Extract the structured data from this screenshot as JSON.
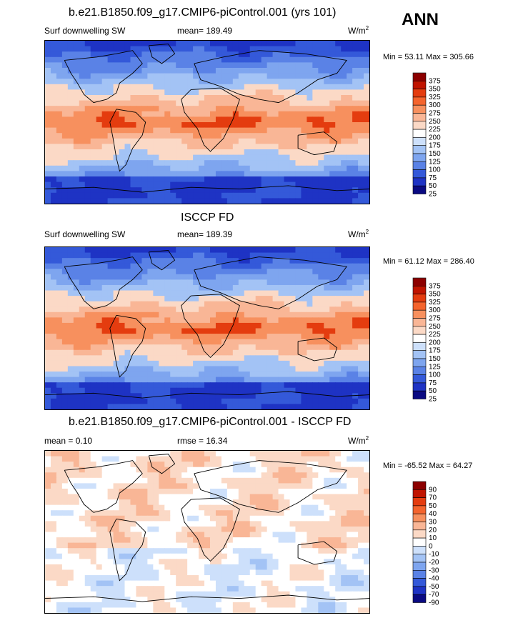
{
  "season": "ANN",
  "chart_data": [
    {
      "type": "heatmap",
      "title": "b.e21.B1850.f09_g17.CMIP6-piControl.001 (yrs 101)",
      "variable": "Surf downwelling SW",
      "stat": "mean= 189.49",
      "units": "W/m",
      "units_sup": "2",
      "min": "53.11",
      "max": "305.66",
      "minmax_label": "Min =  53.11 Max = 305.66",
      "levels": [
        "375",
        "350",
        "325",
        "300",
        "275",
        "250",
        "225",
        "200",
        "175",
        "150",
        "125",
        "100",
        "75",
        "50",
        "25"
      ],
      "colors": [
        "#8c0000",
        "#c01400",
        "#e43c0f",
        "#f4642d",
        "#f7905e",
        "#f9b696",
        "#fbd9c6",
        "#ffffff",
        "#cde0fb",
        "#a3c3f5",
        "#7ea5ef",
        "#5a82e6",
        "#3459d9",
        "#1e33c4",
        "#0a0a82"
      ],
      "map_palette": [
        "#1e33c4",
        "#3459d9",
        "#5a82e6",
        "#7ea5ef",
        "#a3c3f5",
        "#fbd9c6",
        "#f9b696",
        "#f7905e",
        "#e43c0f"
      ]
    },
    {
      "type": "heatmap",
      "title": "ISCCP FD",
      "variable": "Surf downwelling SW",
      "stat": "mean= 189.39",
      "units": "W/m",
      "units_sup": "2",
      "min": "61.12",
      "max": "286.40",
      "minmax_label": "Min =  61.12 Max = 286.40",
      "levels": [
        "375",
        "350",
        "325",
        "300",
        "275",
        "250",
        "225",
        "200",
        "175",
        "150",
        "125",
        "100",
        "75",
        "50",
        "25"
      ],
      "colors": [
        "#8c0000",
        "#c01400",
        "#e43c0f",
        "#f4642d",
        "#f7905e",
        "#f9b696",
        "#fbd9c6",
        "#ffffff",
        "#cde0fb",
        "#a3c3f5",
        "#7ea5ef",
        "#5a82e6",
        "#3459d9",
        "#1e33c4",
        "#0a0a82"
      ],
      "map_palette": [
        "#1e33c4",
        "#3459d9",
        "#5a82e6",
        "#7ea5ef",
        "#a3c3f5",
        "#fbd9c6",
        "#f9b696",
        "#f7905e",
        "#e43c0f"
      ]
    },
    {
      "type": "heatmap",
      "title": "b.e21.B1850.f09_g17.CMIP6-piControl.001 - ISCCP FD",
      "variable": "mean =   0.10",
      "stat": "rmse =  16.34",
      "units": "W/m",
      "units_sup": "2",
      "min": "-65.52",
      "max": "64.27",
      "minmax_label": "Min = -65.52 Max =  64.27",
      "levels": [
        "90",
        "70",
        "50",
        "40",
        "30",
        "20",
        "10",
        "0",
        "-10",
        "-20",
        "-30",
        "-40",
        "-50",
        "-70",
        "-90"
      ],
      "colors": [
        "#8c0000",
        "#c01400",
        "#e43c0f",
        "#f4642d",
        "#f7905e",
        "#f9b696",
        "#fbd9c6",
        "#ffffff",
        "#cde0fb",
        "#a3c3f5",
        "#7ea5ef",
        "#5a82e6",
        "#3459d9",
        "#1e33c4",
        "#0a0a82"
      ],
      "map_palette": [
        "#a3c3f5",
        "#cde0fb",
        "#ffffff",
        "#fbd9c6",
        "#f9b696",
        "#f7905e",
        "#e43c0f"
      ]
    }
  ]
}
